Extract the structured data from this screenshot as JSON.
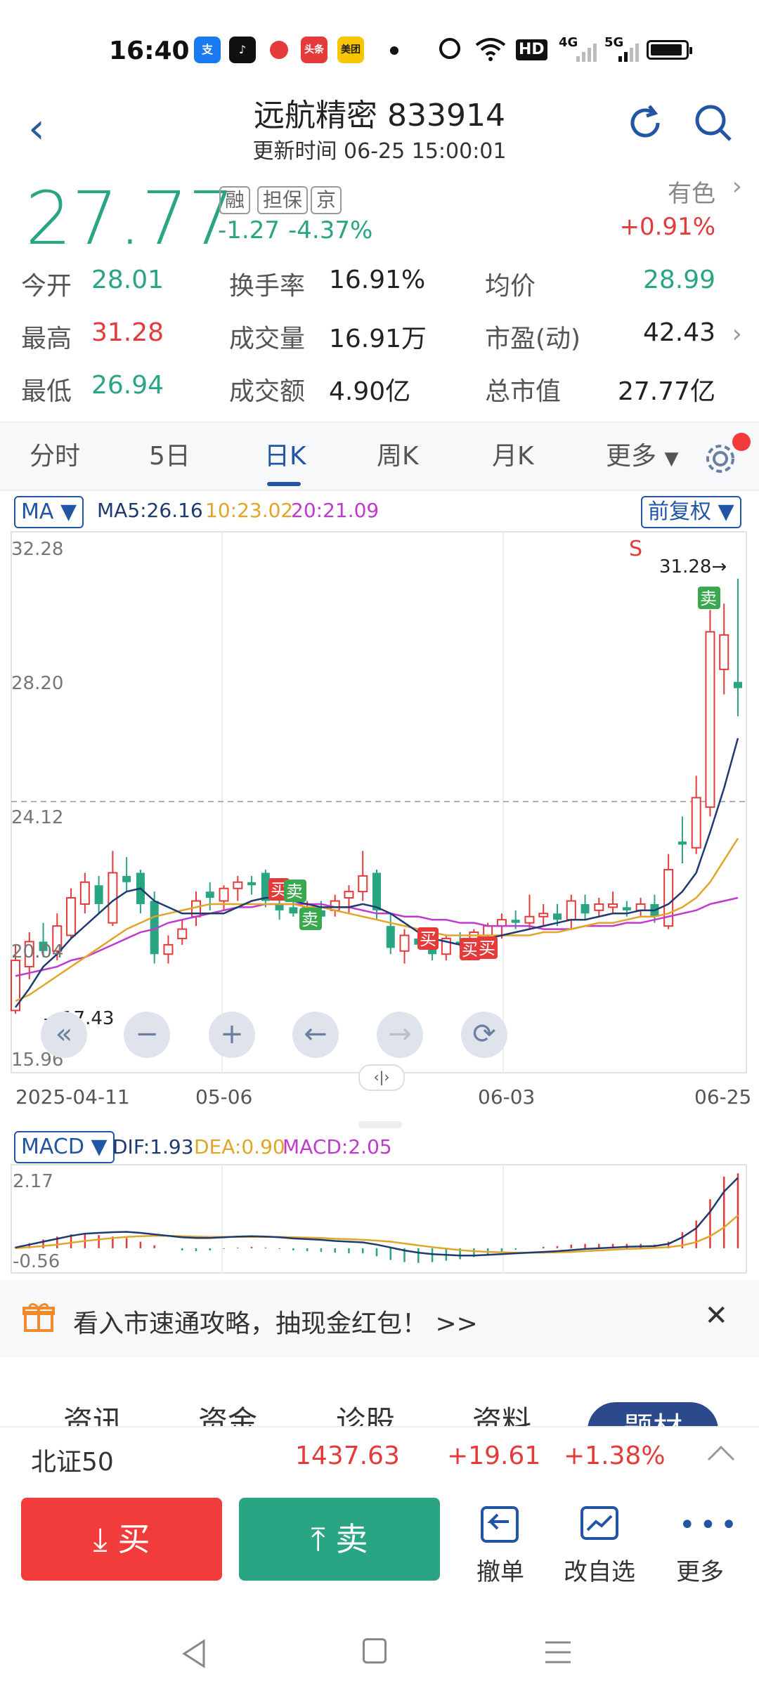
{
  "status_bar": {
    "time": "16:40",
    "icons": [
      "alipay-icon",
      "tiktok-icon",
      "app-icon",
      "toutiao-icon",
      "meituan-icon",
      "dot-icon",
      "alarm-icon",
      "wifi-icon"
    ],
    "hd": "HD",
    "net1": "4G",
    "net2": "5G"
  },
  "header": {
    "title": "远航精密 833914",
    "updated": "更新时间 06-25 15:00:01"
  },
  "quote": {
    "price": "27.77",
    "tags": [
      "融",
      "担保",
      "京"
    ],
    "change": "-1.27",
    "change_pct": "-4.37%",
    "industry": "有色",
    "industry_change": "+0.91%",
    "rows": [
      [
        {
          "label": "今开",
          "value": "28.01",
          "color": "green"
        },
        {
          "label": "换手率",
          "value": "16.91%",
          "color": "dark"
        },
        {
          "label": "均价",
          "value": "28.99",
          "color": "green"
        }
      ],
      [
        {
          "label": "最高",
          "value": "31.28",
          "color": "red"
        },
        {
          "label": "成交量",
          "value": "16.91万",
          "color": "dark"
        },
        {
          "label": "市盈(动)",
          "value": "42.43",
          "color": "dark"
        }
      ],
      [
        {
          "label": "最低",
          "value": "26.94",
          "color": "green"
        },
        {
          "label": "成交额",
          "value": "4.90亿",
          "color": "dark"
        },
        {
          "label": "总市值",
          "value": "27.77亿",
          "color": "dark"
        }
      ]
    ]
  },
  "tabs": [
    "分时",
    "5日",
    "日K",
    "周K",
    "月K",
    "更多"
  ],
  "active_tab": "日K",
  "kline": {
    "indicator": "MA",
    "ma5": "MA5:26.16",
    "ma10": "10:23.02",
    "ma20": "20:21.09",
    "adjust": "前复权",
    "y_labels": [
      "32.28",
      "28.20",
      "24.12",
      "20.04",
      "15.96"
    ],
    "low_marker": "17.43",
    "high_marker": "31.28",
    "s_marker": "S",
    "dates": [
      "2025-04-11",
      "05-06",
      "06-03",
      "06-25"
    ],
    "buy_label": "买",
    "sell_label": "卖"
  },
  "macd": {
    "indicator": "MACD",
    "dif": "DIF:1.93",
    "dea": "DEA:0.90",
    "macd": "MACD:2.05",
    "y_top": "2.17",
    "y_bottom": "-0.56"
  },
  "banner": {
    "text": "看入市速通攻略，抽现金红包！ >>"
  },
  "section_tabs": [
    "资讯",
    "资金",
    "诊股",
    "资料",
    "题材"
  ],
  "index": {
    "name": "北证50",
    "value": "1437.63",
    "change": "+19.61",
    "change_pct": "+1.38%"
  },
  "actions": {
    "buy": "买",
    "sell": "卖",
    "cancel": "撤单",
    "watchlist": "改自选",
    "more": "更多"
  },
  "colors": {
    "up": "#e53a3a",
    "down": "#2aa584",
    "accent": "#2255a4",
    "ma5": "#1e3a6e",
    "ma10": "#e0a52a",
    "ma20": "#c03ad0"
  },
  "chart_data": {
    "type": "candlestick",
    "y_axis_ticks": [
      32.28,
      28.2,
      24.12,
      20.04,
      15.96
    ],
    "ylim": [
      15.96,
      32.28
    ],
    "x_tick_labels": [
      "2025-04-11",
      "05-06",
      "06-03",
      "06-25"
    ],
    "candles": [
      {
        "o": 17.5,
        "h": 19.6,
        "l": 17.4,
        "c": 19.1
      },
      {
        "o": 18.9,
        "h": 20.0,
        "l": 18.5,
        "c": 19.7
      },
      {
        "o": 19.7,
        "h": 20.3,
        "l": 19.2,
        "c": 19.4
      },
      {
        "o": 19.4,
        "h": 20.6,
        "l": 19.1,
        "c": 20.2
      },
      {
        "o": 19.9,
        "h": 21.4,
        "l": 19.8,
        "c": 21.1
      },
      {
        "o": 20.9,
        "h": 21.9,
        "l": 20.6,
        "c": 21.6
      },
      {
        "o": 21.5,
        "h": 21.8,
        "l": 20.6,
        "c": 20.9
      },
      {
        "o": 20.3,
        "h": 22.6,
        "l": 20.2,
        "c": 21.9
      },
      {
        "o": 21.8,
        "h": 22.4,
        "l": 21.3,
        "c": 21.6
      },
      {
        "o": 21.9,
        "h": 22.0,
        "l": 20.6,
        "c": 20.9
      },
      {
        "o": 21.0,
        "h": 21.3,
        "l": 19.0,
        "c": 19.3
      },
      {
        "o": 19.3,
        "h": 19.9,
        "l": 19.0,
        "c": 19.6
      },
      {
        "o": 19.8,
        "h": 20.4,
        "l": 19.6,
        "c": 20.1
      },
      {
        "o": 20.5,
        "h": 21.3,
        "l": 20.2,
        "c": 21.0
      },
      {
        "o": 21.3,
        "h": 21.6,
        "l": 20.7,
        "c": 21.1
      },
      {
        "o": 21.0,
        "h": 21.5,
        "l": 20.7,
        "c": 21.4
      },
      {
        "o": 21.4,
        "h": 21.8,
        "l": 21.0,
        "c": 21.6
      },
      {
        "o": 21.6,
        "h": 21.8,
        "l": 21.2,
        "c": 21.5
      },
      {
        "o": 21.9,
        "h": 22.0,
        "l": 20.8,
        "c": 21.0
      },
      {
        "o": 20.9,
        "h": 21.1,
        "l": 20.4,
        "c": 20.7
      },
      {
        "o": 20.8,
        "h": 21.0,
        "l": 20.5,
        "c": 20.6
      },
      {
        "o": 20.6,
        "h": 21.0,
        "l": 20.4,
        "c": 20.8
      },
      {
        "o": 20.7,
        "h": 21.0,
        "l": 20.3,
        "c": 20.5
      },
      {
        "o": 20.7,
        "h": 21.2,
        "l": 20.5,
        "c": 21.0
      },
      {
        "o": 21.1,
        "h": 21.5,
        "l": 20.6,
        "c": 21.3
      },
      {
        "o": 21.3,
        "h": 22.6,
        "l": 21.0,
        "c": 21.8
      },
      {
        "o": 21.9,
        "h": 22.0,
        "l": 20.4,
        "c": 20.7
      },
      {
        "o": 20.2,
        "h": 20.6,
        "l": 19.3,
        "c": 19.5
      },
      {
        "o": 19.4,
        "h": 20.1,
        "l": 19.0,
        "c": 19.9
      },
      {
        "o": 19.8,
        "h": 20.0,
        "l": 19.5,
        "c": 19.6
      },
      {
        "o": 19.6,
        "h": 19.9,
        "l": 19.1,
        "c": 19.3
      },
      {
        "o": 19.3,
        "h": 19.9,
        "l": 19.1,
        "c": 19.8
      },
      {
        "o": 19.7,
        "h": 20.0,
        "l": 19.5,
        "c": 19.6
      },
      {
        "o": 19.6,
        "h": 20.1,
        "l": 19.4,
        "c": 20.0
      },
      {
        "o": 19.9,
        "h": 20.3,
        "l": 19.7,
        "c": 20.2
      },
      {
        "o": 20.2,
        "h": 20.6,
        "l": 19.8,
        "c": 20.4
      },
      {
        "o": 20.4,
        "h": 20.7,
        "l": 20.1,
        "c": 20.3
      },
      {
        "o": 20.3,
        "h": 21.2,
        "l": 20.1,
        "c": 20.5
      },
      {
        "o": 20.5,
        "h": 20.9,
        "l": 20.2,
        "c": 20.6
      },
      {
        "o": 20.6,
        "h": 20.9,
        "l": 20.2,
        "c": 20.4
      },
      {
        "o": 20.4,
        "h": 21.2,
        "l": 20.1,
        "c": 21.0
      },
      {
        "o": 20.9,
        "h": 21.2,
        "l": 20.4,
        "c": 20.6
      },
      {
        "o": 20.7,
        "h": 21.1,
        "l": 20.5,
        "c": 20.9
      },
      {
        "o": 20.8,
        "h": 21.3,
        "l": 20.6,
        "c": 20.9
      },
      {
        "o": 20.8,
        "h": 21.0,
        "l": 20.5,
        "c": 20.7
      },
      {
        "o": 20.7,
        "h": 21.1,
        "l": 20.5,
        "c": 20.9
      },
      {
        "o": 20.9,
        "h": 21.2,
        "l": 20.3,
        "c": 20.5
      },
      {
        "o": 20.2,
        "h": 22.5,
        "l": 20.1,
        "c": 22.0
      },
      {
        "o": 22.9,
        "h": 23.7,
        "l": 22.2,
        "c": 22.8
      },
      {
        "o": 22.7,
        "h": 25.0,
        "l": 22.5,
        "c": 24.3
      },
      {
        "o": 24.0,
        "h": 30.3,
        "l": 23.7,
        "c": 29.6
      },
      {
        "o": 28.4,
        "h": 30.5,
        "l": 27.6,
        "c": 29.5
      },
      {
        "o": 28.0,
        "h": 31.3,
        "l": 26.9,
        "c": 27.8
      }
    ],
    "ma5": [
      17.6,
      18.2,
      18.9,
      19.3,
      19.8,
      20.2,
      20.6,
      21.0,
      21.3,
      21.4,
      21.0,
      20.8,
      20.6,
      20.6,
      20.6,
      20.6,
      20.8,
      21.0,
      21.1,
      21.1,
      21.0,
      20.9,
      20.8,
      20.8,
      20.8,
      20.9,
      20.8,
      20.6,
      20.3,
      20.0,
      19.8,
      19.7,
      19.6,
      19.7,
      19.8,
      19.9,
      20.0,
      20.1,
      20.2,
      20.3,
      20.4,
      20.4,
      20.5,
      20.6,
      20.6,
      20.7,
      20.7,
      20.9,
      21.3,
      21.9,
      23.2,
      24.6,
      26.2
    ],
    "ma10": [
      17.8,
      18.0,
      18.3,
      18.6,
      18.9,
      19.2,
      19.5,
      19.8,
      20.1,
      20.3,
      20.5,
      20.6,
      20.7,
      20.8,
      20.9,
      20.9,
      20.9,
      20.9,
      20.9,
      20.9,
      20.9,
      20.8,
      20.8,
      20.7,
      20.6,
      20.5,
      20.4,
      20.3,
      20.2,
      20.1,
      20.0,
      19.9,
      19.9,
      19.9,
      19.9,
      19.9,
      19.9,
      19.9,
      20.0,
      20.0,
      20.1,
      20.2,
      20.3,
      20.3,
      20.4,
      20.5,
      20.5,
      20.6,
      20.8,
      21.1,
      21.6,
      22.3,
      23.0
    ],
    "ma20": [
      18.6,
      18.7,
      18.8,
      18.9,
      19.1,
      19.2,
      19.4,
      19.6,
      19.8,
      20.0,
      20.1,
      20.3,
      20.4,
      20.5,
      20.6,
      20.7,
      20.8,
      20.8,
      20.9,
      20.9,
      20.9,
      20.9,
      20.9,
      20.8,
      20.8,
      20.7,
      20.6,
      20.6,
      20.5,
      20.5,
      20.4,
      20.4,
      20.3,
      20.3,
      20.2,
      20.2,
      20.2,
      20.2,
      20.1,
      20.1,
      20.1,
      20.2,
      20.2,
      20.2,
      20.3,
      20.3,
      20.4,
      20.5,
      20.6,
      20.7,
      20.9,
      21.0,
      21.1
    ],
    "macd_ylim": [
      -0.56,
      2.17
    ],
    "dif": [
      0.02,
      0.1,
      0.18,
      0.26,
      0.34,
      0.4,
      0.42,
      0.44,
      0.45,
      0.42,
      0.38,
      0.34,
      0.3,
      0.28,
      0.28,
      0.3,
      0.32,
      0.33,
      0.32,
      0.3,
      0.27,
      0.25,
      0.23,
      0.2,
      0.18,
      0.16,
      0.1,
      0.02,
      -0.06,
      -0.12,
      -0.16,
      -0.18,
      -0.2,
      -0.2,
      -0.18,
      -0.16,
      -0.14,
      -0.12,
      -0.1,
      -0.08,
      -0.05,
      -0.02,
      0.0,
      0.02,
      0.04,
      0.05,
      0.06,
      0.12,
      0.3,
      0.55,
      1.0,
      1.55,
      1.93
    ],
    "dea": [
      0.0,
      0.03,
      0.06,
      0.1,
      0.15,
      0.2,
      0.24,
      0.28,
      0.31,
      0.33,
      0.34,
      0.34,
      0.33,
      0.32,
      0.31,
      0.31,
      0.31,
      0.31,
      0.31,
      0.31,
      0.3,
      0.29,
      0.28,
      0.26,
      0.25,
      0.23,
      0.21,
      0.18,
      0.13,
      0.08,
      0.03,
      -0.01,
      -0.05,
      -0.08,
      -0.1,
      -0.11,
      -0.12,
      -0.12,
      -0.12,
      -0.11,
      -0.1,
      -0.08,
      -0.06,
      -0.04,
      -0.02,
      -0.01,
      0.01,
      0.03,
      0.08,
      0.17,
      0.33,
      0.57,
      0.9
    ],
    "macd_hist": [
      0.04,
      0.14,
      0.24,
      0.32,
      0.38,
      0.4,
      0.36,
      0.32,
      0.28,
      0.18,
      0.08,
      0.0,
      -0.06,
      -0.08,
      -0.06,
      -0.02,
      0.02,
      0.04,
      0.02,
      -0.02,
      -0.06,
      -0.08,
      -0.1,
      -0.12,
      -0.14,
      -0.14,
      -0.22,
      -0.32,
      -0.38,
      -0.4,
      -0.38,
      -0.34,
      -0.3,
      -0.24,
      -0.16,
      -0.1,
      -0.04,
      0.0,
      0.04,
      0.06,
      0.1,
      0.12,
      0.12,
      0.12,
      0.12,
      0.12,
      0.1,
      0.18,
      0.44,
      0.76,
      1.34,
      1.96,
      2.05
    ]
  }
}
